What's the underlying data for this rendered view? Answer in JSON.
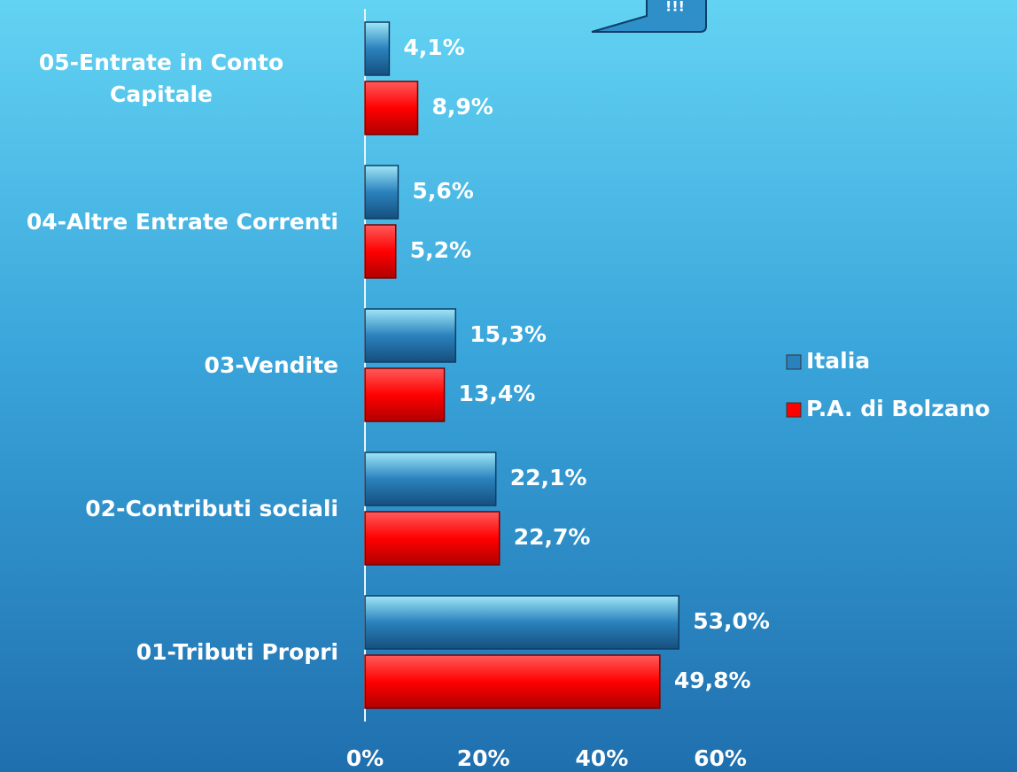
{
  "chart_data": {
    "type": "hbar",
    "annotation": "!!!",
    "categories": [
      "05-Entrate in Conto\nCapitale",
      "04-Altre Entrate Correnti",
      "03-Vendite",
      "02-Contributi sociali",
      "01-Tributi Propri"
    ],
    "series": [
      {
        "name": "Italia",
        "color": "#2a82bd",
        "values": [
          4.1,
          5.6,
          15.3,
          22.1,
          53.0
        ],
        "value_labels": [
          "4,1%",
          "5,6%",
          "15,3%",
          "22,1%",
          "53,0%"
        ]
      },
      {
        "name": "P.A. di Bolzano",
        "color": "#ff0000",
        "values": [
          8.9,
          5.2,
          13.4,
          22.7,
          49.8
        ],
        "value_labels": [
          "8,9%",
          "5,2%",
          "13,4%",
          "22,7%",
          "49,8%"
        ]
      }
    ],
    "xlim": [
      0,
      60
    ],
    "xticks": [
      {
        "value": 0,
        "label": "0%"
      },
      {
        "value": 20,
        "label": "20%"
      },
      {
        "value": 40,
        "label": "40%"
      },
      {
        "value": 60,
        "label": "60%"
      }
    ],
    "legend": "right"
  }
}
